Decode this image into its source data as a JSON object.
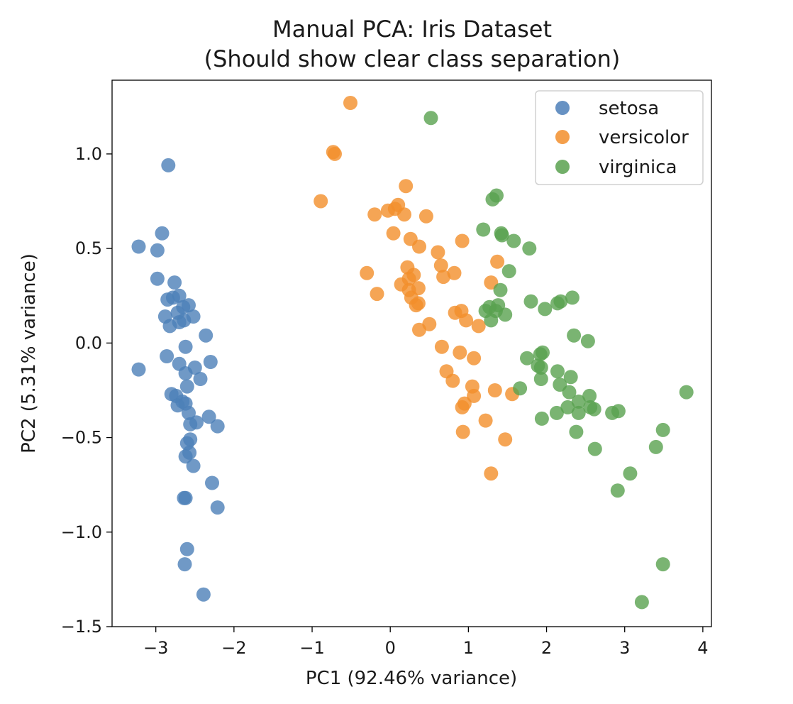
{
  "chart_data": {
    "type": "scatter",
    "title": "Manual PCA: Iris Dataset",
    "subtitle": "(Should show clear class separation)",
    "xlabel": "PC1 (92.46% variance)",
    "ylabel": "PC2 (5.31% variance)",
    "xlim": [
      -3.56,
      4.11
    ],
    "ylim": [
      -1.5,
      1.39
    ],
    "xticks": [
      -3,
      -2,
      -1,
      0,
      1,
      2,
      3,
      4
    ],
    "yticks": [
      -1.5,
      -1.0,
      -0.5,
      0.0,
      0.5,
      1.0
    ],
    "xtick_labels": [
      "−3",
      "−2",
      "−1",
      "0",
      "1",
      "2",
      "3",
      "4"
    ],
    "ytick_labels": [
      "−1.5",
      "−1.0",
      "−0.5",
      "0.0",
      "0.5",
      "1.0"
    ],
    "grid": false,
    "legend_position": "top-right",
    "series": [
      {
        "name": "setosa",
        "color": "#4c7fb8",
        "points": [
          [
            -2.84,
            0.94
          ],
          [
            -2.92,
            0.58
          ],
          [
            -3.22,
            0.51
          ],
          [
            -2.98,
            0.49
          ],
          [
            -2.98,
            0.34
          ],
          [
            -2.76,
            0.32
          ],
          [
            -2.7,
            0.25
          ],
          [
            -2.78,
            0.24
          ],
          [
            -2.85,
            0.23
          ],
          [
            -2.58,
            0.2
          ],
          [
            -2.65,
            0.19
          ],
          [
            -2.72,
            0.16
          ],
          [
            -2.52,
            0.14
          ],
          [
            -2.88,
            0.14
          ],
          [
            -2.64,
            0.12
          ],
          [
            -2.7,
            0.11
          ],
          [
            -2.82,
            0.09
          ],
          [
            -2.36,
            0.04
          ],
          [
            -2.62,
            -0.02
          ],
          [
            -2.86,
            -0.07
          ],
          [
            -2.7,
            -0.11
          ],
          [
            -2.3,
            -0.1
          ],
          [
            -3.22,
            -0.14
          ],
          [
            -2.5,
            -0.13
          ],
          [
            -2.62,
            -0.16
          ],
          [
            -2.43,
            -0.19
          ],
          [
            -2.6,
            -0.23
          ],
          [
            -2.8,
            -0.27
          ],
          [
            -2.74,
            -0.28
          ],
          [
            -2.66,
            -0.31
          ],
          [
            -2.72,
            -0.33
          ],
          [
            -2.62,
            -0.32
          ],
          [
            -2.58,
            -0.37
          ],
          [
            -2.48,
            -0.42
          ],
          [
            -2.32,
            -0.39
          ],
          [
            -2.21,
            -0.44
          ],
          [
            -2.56,
            -0.43
          ],
          [
            -2.56,
            -0.51
          ],
          [
            -2.6,
            -0.53
          ],
          [
            -2.57,
            -0.58
          ],
          [
            -2.62,
            -0.6
          ],
          [
            -2.52,
            -0.65
          ],
          [
            -2.28,
            -0.74
          ],
          [
            -2.21,
            -0.87
          ],
          [
            -2.64,
            -0.82
          ],
          [
            -2.62,
            -0.82
          ],
          [
            -2.6,
            -1.09
          ],
          [
            -2.63,
            -1.17
          ],
          [
            -2.39,
            -1.33
          ]
        ]
      },
      {
        "name": "versicolor",
        "color": "#f28e2b",
        "points": [
          [
            -0.51,
            1.27
          ],
          [
            -0.73,
            1.01
          ],
          [
            -0.71,
            1.0
          ],
          [
            -0.89,
            0.75
          ],
          [
            0.2,
            0.83
          ],
          [
            0.06,
            0.71
          ],
          [
            -0.03,
            0.7
          ],
          [
            0.1,
            0.73
          ],
          [
            -0.2,
            0.68
          ],
          [
            0.18,
            0.68
          ],
          [
            0.46,
            0.67
          ],
          [
            0.92,
            0.54
          ],
          [
            0.04,
            0.58
          ],
          [
            0.26,
            0.55
          ],
          [
            0.37,
            0.51
          ],
          [
            0.61,
            0.48
          ],
          [
            0.65,
            0.41
          ],
          [
            0.82,
            0.37
          ],
          [
            1.37,
            0.43
          ],
          [
            -0.3,
            0.37
          ],
          [
            0.22,
            0.4
          ],
          [
            0.3,
            0.36
          ],
          [
            0.68,
            0.35
          ],
          [
            0.24,
            0.34
          ],
          [
            0.14,
            0.31
          ],
          [
            0.24,
            0.28
          ],
          [
            0.36,
            0.29
          ],
          [
            1.29,
            0.32
          ],
          [
            0.27,
            0.24
          ],
          [
            -0.17,
            0.26
          ],
          [
            0.33,
            0.2
          ],
          [
            0.36,
            0.21
          ],
          [
            0.83,
            0.16
          ],
          [
            0.91,
            0.17
          ],
          [
            0.97,
            0.12
          ],
          [
            1.13,
            0.09
          ],
          [
            0.5,
            0.1
          ],
          [
            0.37,
            0.07
          ],
          [
            0.66,
            -0.02
          ],
          [
            0.89,
            -0.05
          ],
          [
            1.07,
            -0.08
          ],
          [
            0.72,
            -0.15
          ],
          [
            0.8,
            -0.2
          ],
          [
            1.05,
            -0.23
          ],
          [
            1.07,
            -0.28
          ],
          [
            1.34,
            -0.25
          ],
          [
            1.56,
            -0.27
          ],
          [
            0.95,
            -0.32
          ],
          [
            0.92,
            -0.34
          ],
          [
            1.22,
            -0.41
          ],
          [
            0.93,
            -0.47
          ],
          [
            1.47,
            -0.51
          ],
          [
            1.29,
            -0.69
          ]
        ]
      },
      {
        "name": "virginica",
        "color": "#59a14f",
        "points": [
          [
            0.52,
            1.19
          ],
          [
            1.36,
            0.78
          ],
          [
            1.31,
            0.76
          ],
          [
            1.19,
            0.6
          ],
          [
            1.42,
            0.58
          ],
          [
            1.43,
            0.57
          ],
          [
            1.58,
            0.54
          ],
          [
            1.78,
            0.5
          ],
          [
            1.52,
            0.38
          ],
          [
            1.41,
            0.28
          ],
          [
            1.8,
            0.22
          ],
          [
            1.98,
            0.18
          ],
          [
            2.14,
            0.21
          ],
          [
            2.18,
            0.22
          ],
          [
            2.33,
            0.24
          ],
          [
            1.38,
            0.2
          ],
          [
            1.47,
            0.15
          ],
          [
            1.22,
            0.17
          ],
          [
            1.27,
            0.19
          ],
          [
            1.35,
            0.17
          ],
          [
            1.29,
            0.12
          ],
          [
            2.35,
            0.04
          ],
          [
            2.53,
            0.01
          ],
          [
            1.95,
            -0.05
          ],
          [
            1.92,
            -0.06
          ],
          [
            1.75,
            -0.08
          ],
          [
            1.89,
            -0.12
          ],
          [
            1.93,
            -0.13
          ],
          [
            2.14,
            -0.15
          ],
          [
            2.31,
            -0.18
          ],
          [
            1.93,
            -0.19
          ],
          [
            2.17,
            -0.22
          ],
          [
            1.66,
            -0.24
          ],
          [
            2.29,
            -0.26
          ],
          [
            2.55,
            -0.28
          ],
          [
            2.41,
            -0.31
          ],
          [
            2.27,
            -0.34
          ],
          [
            2.56,
            -0.34
          ],
          [
            2.13,
            -0.37
          ],
          [
            2.41,
            -0.37
          ],
          [
            2.61,
            -0.35
          ],
          [
            2.84,
            -0.37
          ],
          [
            2.92,
            -0.36
          ],
          [
            1.94,
            -0.4
          ],
          [
            3.79,
            -0.26
          ],
          [
            3.49,
            -0.46
          ],
          [
            2.38,
            -0.47
          ],
          [
            3.4,
            -0.55
          ],
          [
            2.62,
            -0.56
          ],
          [
            3.07,
            -0.69
          ],
          [
            2.91,
            -0.78
          ],
          [
            3.49,
            -1.17
          ],
          [
            3.22,
            -1.37
          ]
        ]
      }
    ]
  }
}
